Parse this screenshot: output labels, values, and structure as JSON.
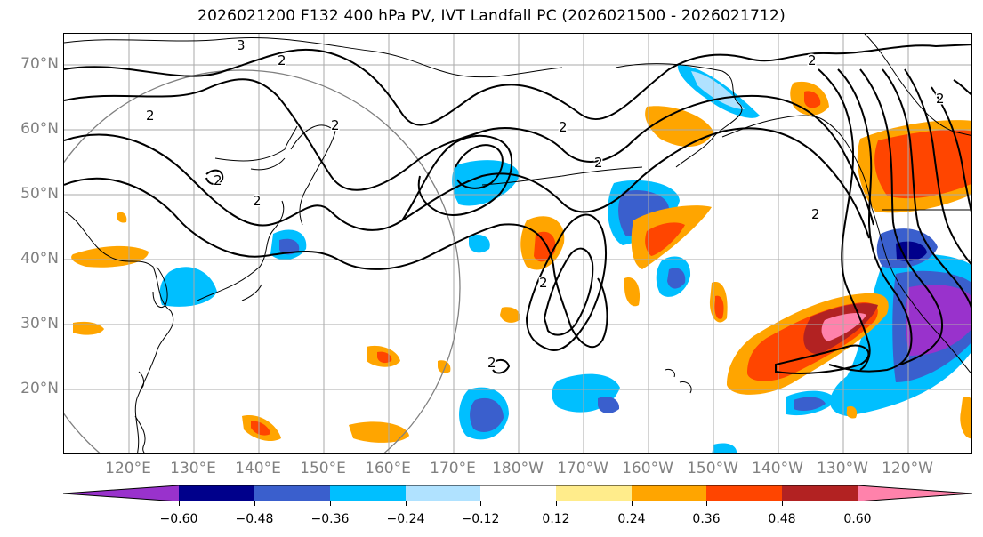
{
  "title": "2026021200 F132 400 hPa PV, IVT Landfall PC (2026021500 - 2026021712)",
  "map": {
    "lat_labels": [
      "70°N",
      "60°N",
      "50°N",
      "40°N",
      "30°N",
      "20°N"
    ],
    "lon_labels": [
      "120°E",
      "130°E",
      "140°E",
      "150°E",
      "160°E",
      "170°E",
      "180°W",
      "170°W",
      "160°W",
      "150°W",
      "140°W",
      "130°W",
      "120°W"
    ],
    "contour_labels": [
      "3",
      "2",
      "2",
      "2",
      "2",
      "2",
      "2",
      "2",
      "2",
      "2",
      "2",
      "2",
      "2"
    ],
    "colors": {
      "land_outline": "#000000",
      "grid": "#aaaaaa",
      "range_circle": "#808080"
    }
  },
  "colorbar": {
    "ticks": [
      "−0.60",
      "−0.48",
      "−0.36",
      "−0.24",
      "−0.12",
      "0.12",
      "0.24",
      "0.36",
      "0.48",
      "0.60"
    ],
    "colors": [
      "#9932cc",
      "#00008b",
      "#3a5fcd",
      "#00bfff",
      "#b0e2ff",
      "#ffffff",
      "#ffec8b",
      "#ffa500",
      "#ff4500",
      "#b22222",
      "#ff82ab"
    ]
  }
}
